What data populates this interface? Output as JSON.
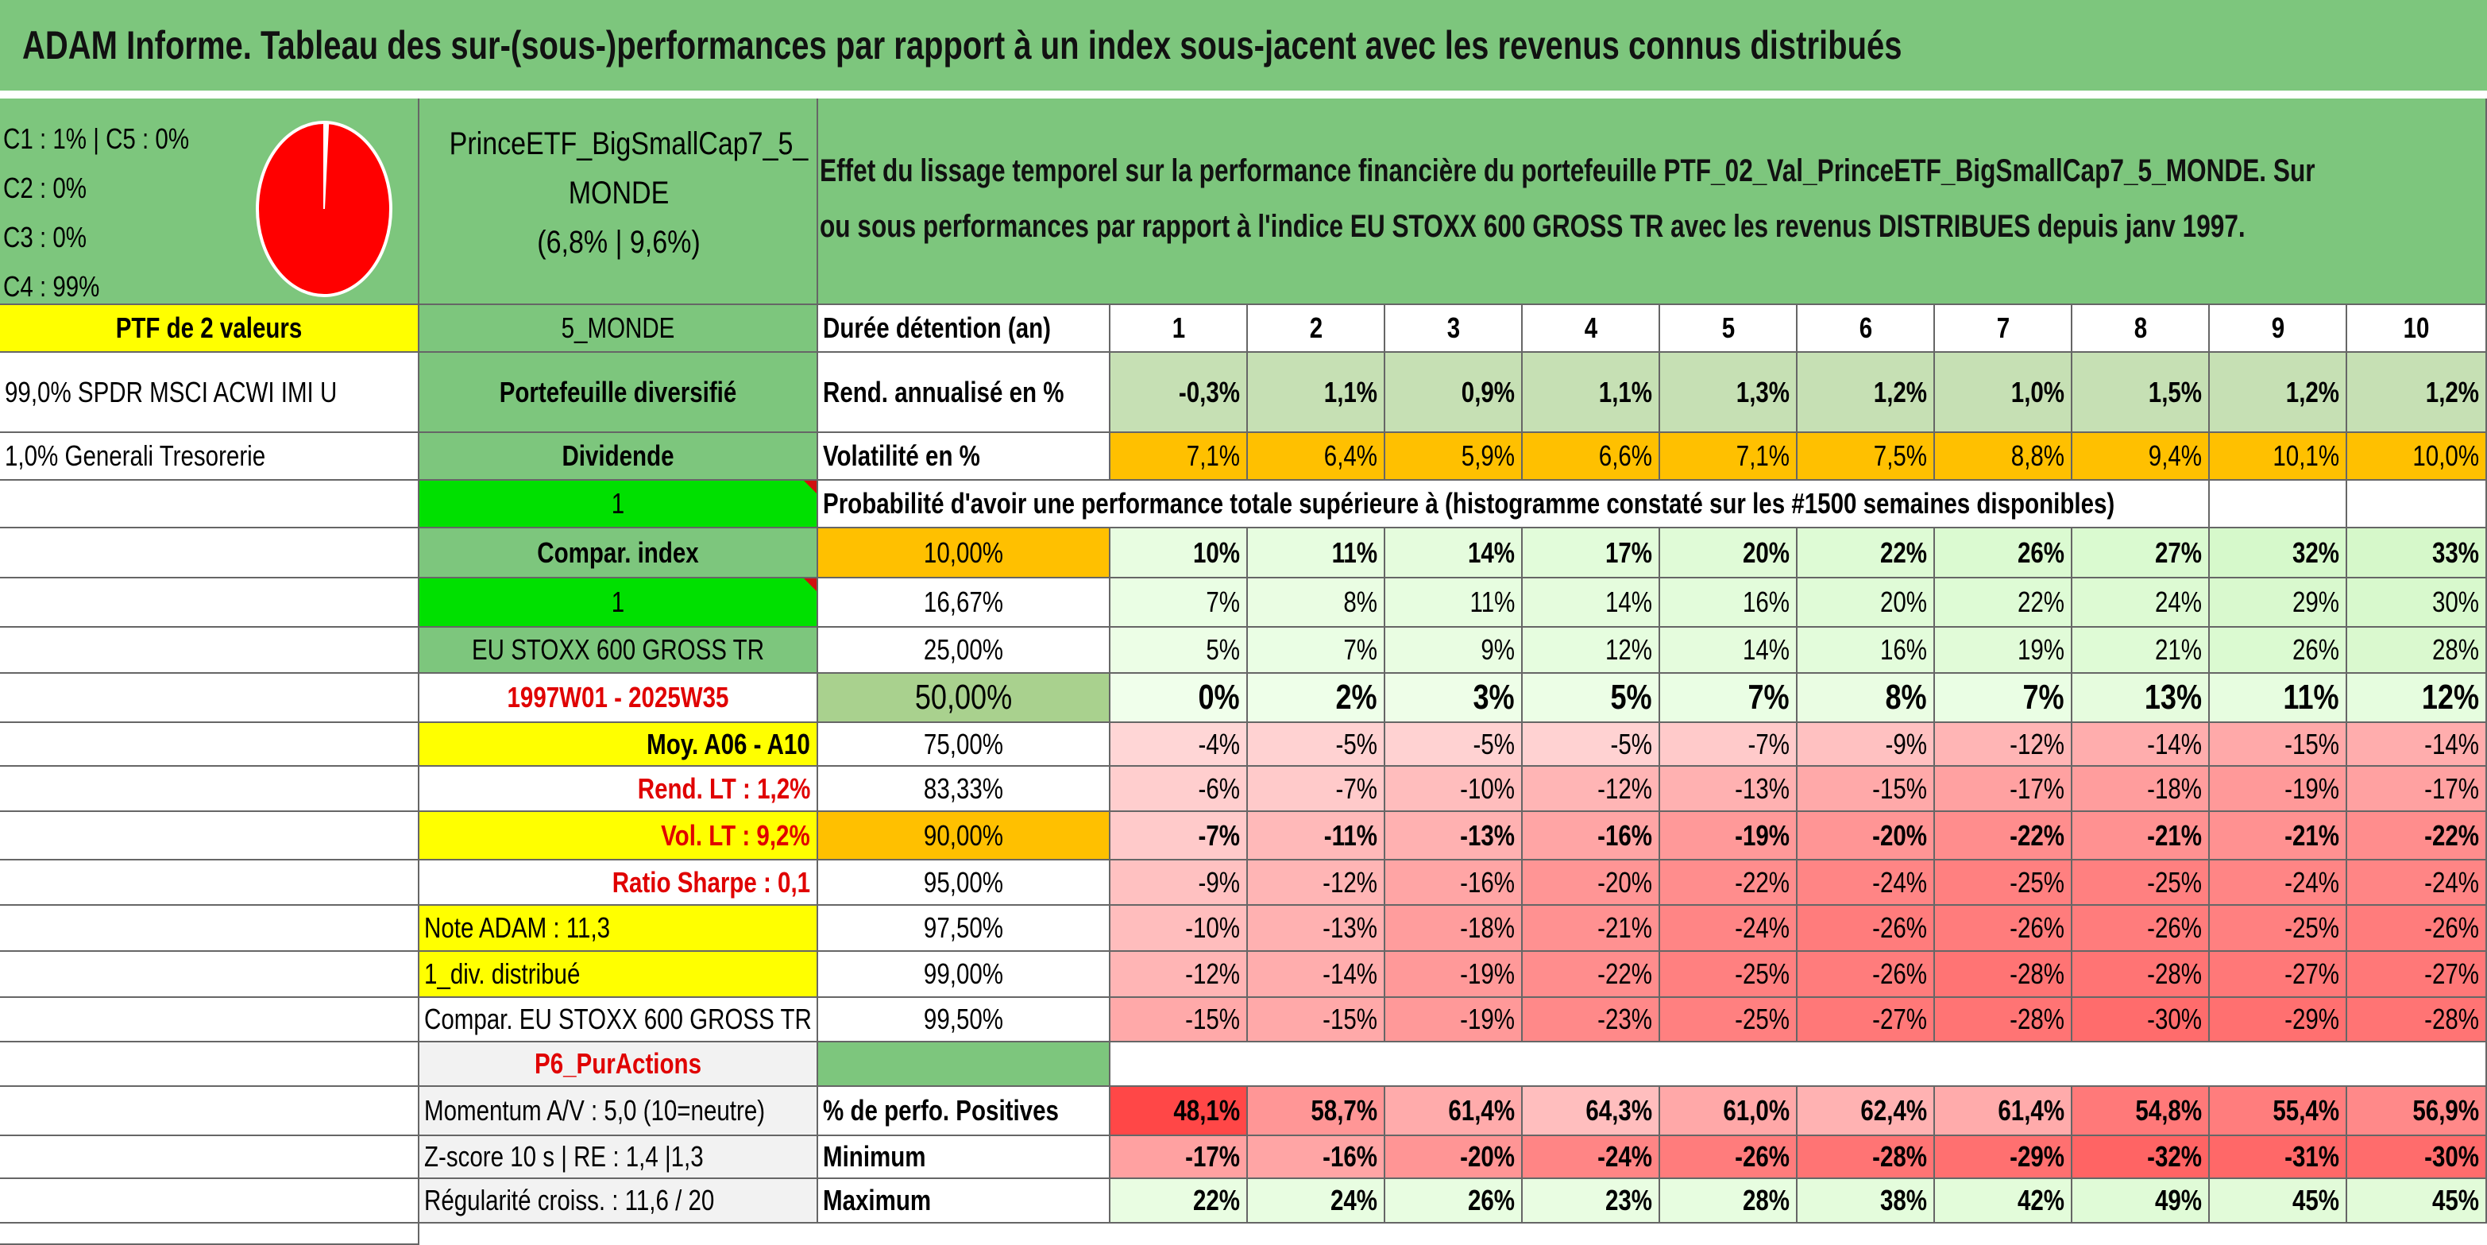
{
  "title": "ADAM Informe. Tableau des sur-(sous-)performances par rapport à un index sous-jacent avec les revenus connus distribués",
  "legend": [
    "C1 : 1% | C5 : 0%",
    "C2 : 0%",
    "C3 : 0%",
    "C4 : 99%"
  ],
  "pie_fractions": [
    0.01,
    0.0,
    0.0,
    0.99,
    0.0
  ],
  "fund_name": [
    "PrinceETF_BigSmallCap7_5_",
    "MONDE",
    "(6,8% | 9,6%)"
  ],
  "description": [
    "Effet du lissage temporel sur la performance financière du portefeuille PTF_02_Val_PrinceETF_BigSmallCap7_5_MONDE. Sur",
    "ou sous performances par rapport à l'indice EU STOXX 600 GROSS TR avec les revenus DISTRIBUES depuis janv 1997."
  ],
  "left_col": [
    "PTF de 2 valeurs",
    "99,0% SPDR MSCI ACWI IMI U",
    "1,0% Generali Tresorerie"
  ],
  "mid_col": [
    "5_MONDE",
    "Portefeuille diversifié",
    "Dividende",
    "1",
    "Compar. index",
    "1",
    "EU STOXX 600 GROSS TR",
    "1997W01 - 2025W35",
    "Moy. A06 - A10",
    "Rend. LT : 1,2%",
    "Vol. LT : 9,2%",
    "Ratio Sharpe : 0,1",
    "Note ADAM : 11,3",
    "1_div. distribué",
    "Compar. EU STOXX 600 GROSS TR",
    "P6_PurActions",
    "Momentum A/V : 5,0 (10=neutre)",
    "Z-score 10 s | RE : 1,4 |1,3",
    "Régularité croiss. : 11,6 / 20"
  ],
  "header_label": "Durée détention (an)",
  "years": [
    "1",
    "2",
    "3",
    "4",
    "5",
    "6",
    "7",
    "8",
    "9",
    "10"
  ],
  "rend_label": "Rend. annualisé en %",
  "rend": [
    "-0,3%",
    "1,1%",
    "0,9%",
    "1,1%",
    "1,3%",
    "1,2%",
    "1,0%",
    "1,5%",
    "1,2%",
    "1,2%"
  ],
  "vol_label": "Volatilité en %",
  "vol": [
    "7,1%",
    "6,4%",
    "5,9%",
    "6,6%",
    "7,1%",
    "7,5%",
    "8,8%",
    "9,4%",
    "10,1%",
    "10,0%"
  ],
  "prob_header": "Probabilité d'avoir une performance totale supérieure à (histogramme constaté sur les #1500 semaines disponibles)",
  "quantiles": [
    {
      "label": "10,00%",
      "values": [
        "10%",
        "11%",
        "14%",
        "17%",
        "20%",
        "22%",
        "26%",
        "27%",
        "32%",
        "33%"
      ]
    },
    {
      "label": "16,67%",
      "values": [
        "7%",
        "8%",
        "11%",
        "14%",
        "16%",
        "20%",
        "22%",
        "24%",
        "29%",
        "30%"
      ]
    },
    {
      "label": "25,00%",
      "values": [
        "5%",
        "7%",
        "9%",
        "12%",
        "14%",
        "16%",
        "19%",
        "21%",
        "26%",
        "28%"
      ]
    },
    {
      "label": "50,00%",
      "values": [
        "0%",
        "2%",
        "3%",
        "5%",
        "7%",
        "8%",
        "7%",
        "13%",
        "11%",
        "12%"
      ]
    },
    {
      "label": "75,00%",
      "values": [
        "-4%",
        "-5%",
        "-5%",
        "-5%",
        "-7%",
        "-9%",
        "-12%",
        "-14%",
        "-15%",
        "-14%"
      ]
    },
    {
      "label": "83,33%",
      "values": [
        "-6%",
        "-7%",
        "-10%",
        "-12%",
        "-13%",
        "-15%",
        "-17%",
        "-18%",
        "-19%",
        "-17%"
      ]
    },
    {
      "label": "90,00%",
      "values": [
        "-7%",
        "-11%",
        "-13%",
        "-16%",
        "-19%",
        "-20%",
        "-22%",
        "-21%",
        "-21%",
        "-22%"
      ]
    },
    {
      "label": "95,00%",
      "values": [
        "-9%",
        "-12%",
        "-16%",
        "-20%",
        "-22%",
        "-24%",
        "-25%",
        "-25%",
        "-24%",
        "-24%"
      ]
    },
    {
      "label": "97,50%",
      "values": [
        "-10%",
        "-13%",
        "-18%",
        "-21%",
        "-24%",
        "-26%",
        "-26%",
        "-26%",
        "-25%",
        "-26%"
      ]
    },
    {
      "label": "99,00%",
      "values": [
        "-12%",
        "-14%",
        "-19%",
        "-22%",
        "-25%",
        "-26%",
        "-28%",
        "-28%",
        "-27%",
        "-27%"
      ]
    },
    {
      "label": "99,50%",
      "values": [
        "-15%",
        "-15%",
        "-19%",
        "-23%",
        "-25%",
        "-27%",
        "-28%",
        "-30%",
        "-29%",
        "-28%"
      ]
    }
  ],
  "pos_label": "% de perfo. Positives",
  "pos": [
    "48,1%",
    "58,7%",
    "61,4%",
    "64,3%",
    "61,0%",
    "62,4%",
    "61,4%",
    "54,8%",
    "55,4%",
    "56,9%"
  ],
  "min_label": "Minimum",
  "min": [
    "-17%",
    "-16%",
    "-20%",
    "-24%",
    "-26%",
    "-28%",
    "-29%",
    "-32%",
    "-31%",
    "-30%"
  ],
  "max_label": "Maximum",
  "max": [
    "22%",
    "24%",
    "26%",
    "23%",
    "28%",
    "38%",
    "42%",
    "49%",
    "45%",
    "45%"
  ],
  "colors": {
    "green": "#7dc67d",
    "yellow": "#ffff00",
    "orange": "#ffc000",
    "bright_green": "#00e000",
    "lightgrey": "#f2f2f2",
    "rendgreen": "#c6e0b4"
  }
}
